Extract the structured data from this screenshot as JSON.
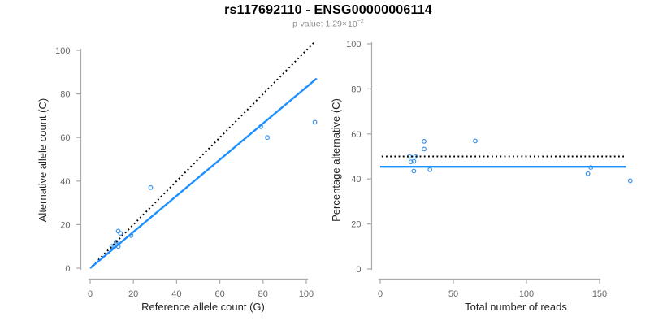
{
  "header": {
    "title": "rs117692110 - ENSG00000006114",
    "pvalue_label": "p-value: ",
    "pvalue_mantissa": "1.29",
    "pvalue_times": "×",
    "pvalue_base": "10",
    "pvalue_exponent": "−2"
  },
  "colors": {
    "accent_blue": "#1E8FFF",
    "point_blue": "#3D94E6",
    "dotted_black": "#000000",
    "axis_line": "#A9A9A9",
    "tick_label": "#666666",
    "axis_title": "#262626",
    "title_color": "#000000",
    "subtitle_gray": "#8C8C8C"
  },
  "chart_data": [
    {
      "id": "allele-count-scatter",
      "type": "scatter",
      "xlabel": "Reference allele count (G)",
      "ylabel": "Alternative allele count (C)",
      "xlim": [
        0,
        105
      ],
      "ylim": [
        0,
        104
      ],
      "xticks": [
        0,
        20,
        40,
        60,
        80,
        100
      ],
      "yticks": [
        0,
        20,
        40,
        60,
        80,
        100
      ],
      "grid": false,
      "points": [
        [
          10,
          10
        ],
        [
          11,
          10
        ],
        [
          12,
          11
        ],
        [
          12,
          12
        ],
        [
          13,
          10
        ],
        [
          13,
          17
        ],
        [
          14,
          16
        ],
        [
          19,
          15
        ],
        [
          28,
          37
        ],
        [
          79,
          65
        ],
        [
          82,
          60
        ],
        [
          104,
          67
        ]
      ],
      "lines": [
        {
          "name": "identity-line",
          "style": "dotted",
          "color": "#000000",
          "x1": 1,
          "y1": 1,
          "x2": 103.5,
          "y2": 103.5,
          "meaning": "y = x (balanced alleles)"
        },
        {
          "name": "fit-line",
          "style": "solid",
          "color": "#1E8FFF",
          "x1": 0,
          "y1": 0,
          "x2": 104.8,
          "y2": 87.1,
          "slope": 0.831
        }
      ]
    },
    {
      "id": "percentage-scatter",
      "type": "scatter",
      "xlabel": "Total number of reads",
      "ylabel": "Percentage alternative (C)",
      "xlim": [
        0,
        172
      ],
      "ylim": [
        0,
        100
      ],
      "xticks": [
        0,
        50,
        100,
        150
      ],
      "yticks": [
        0,
        20,
        40,
        60,
        80,
        100
      ],
      "grid": false,
      "points": [
        [
          20,
          50.0
        ],
        [
          21,
          47.6
        ],
        [
          23,
          47.8
        ],
        [
          24,
          50.0
        ],
        [
          23,
          43.5
        ],
        [
          30,
          56.7
        ],
        [
          30,
          53.3
        ],
        [
          34,
          44.1
        ],
        [
          65,
          56.9
        ],
        [
          144,
          45.1
        ],
        [
          142,
          42.3
        ],
        [
          171,
          39.2
        ]
      ],
      "lines": [
        {
          "name": "expected-50pct-line",
          "style": "dotted",
          "color": "#000000",
          "x1": 1,
          "y1": 50,
          "x2": 168,
          "y2": 50,
          "meaning": "expected 50%"
        },
        {
          "name": "mean-pct-line",
          "style": "solid",
          "color": "#1E8FFF",
          "x1": 0,
          "y1": 45.4,
          "x2": 168,
          "y2": 45.4,
          "mean_percentage": 45.4
        }
      ]
    }
  ]
}
